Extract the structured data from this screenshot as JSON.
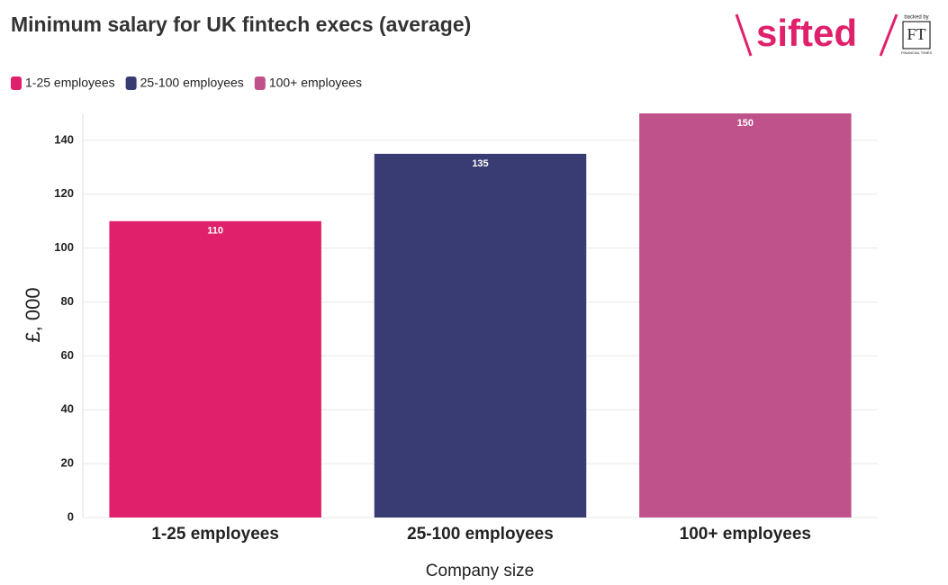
{
  "chart_data": {
    "type": "bar",
    "title": "Minimum salary for UK fintech execs (average)",
    "logo": {
      "brand": "sifted",
      "backer_note": "backed by",
      "backer": "FT",
      "backer_name": "FINANCIAL TIMES"
    },
    "categories": [
      "1-25 employees",
      "25-100 employees",
      "100+ employees"
    ],
    "values": [
      110,
      135,
      150
    ],
    "colors": [
      "#e0206b",
      "#383c72",
      "#bf528b"
    ],
    "x_label": "Company size",
    "y_label": "£, 000",
    "ylim": [
      0,
      150
    ],
    "yticks": [
      0,
      20,
      40,
      60,
      80,
      100,
      120,
      140
    ],
    "grid": true,
    "legend": "top-left"
  }
}
